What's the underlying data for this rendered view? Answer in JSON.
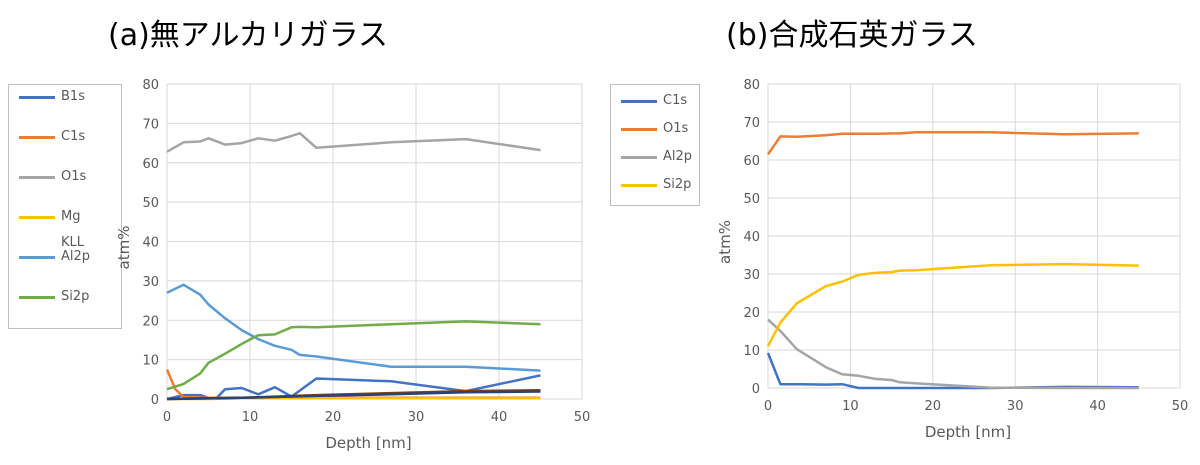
{
  "chart_data": [
    {
      "type": "line",
      "title": "(a)無アルカリガラス",
      "xlabel": "Depth [nm]",
      "ylabel": "atm%",
      "xlim": [
        0,
        50
      ],
      "ylim": [
        0,
        80
      ],
      "xticks": [
        0,
        10,
        20,
        30,
        40,
        50
      ],
      "yticks": [
        0,
        10,
        20,
        30,
        40,
        50,
        60,
        70,
        80
      ],
      "grid": true,
      "legend_position": "left",
      "legend": [
        "B1s",
        "C1s",
        "O1s",
        "Mg",
        "KLL",
        "Al2p",
        "Si2p"
      ],
      "series": [
        {
          "name": "B1s",
          "color": "#4472c4",
          "x": [
            0,
            2,
            4,
            5,
            6,
            7,
            9,
            11,
            13,
            15,
            18,
            27,
            36,
            45
          ],
          "y": [
            0,
            1,
            1,
            0.3,
            0.3,
            2.5,
            2.8,
            1.2,
            3,
            0.6,
            5.2,
            4.5,
            2,
            6
          ]
        },
        {
          "name": "C1s",
          "color": "#ed7d31",
          "x": [
            0,
            1,
            2,
            4,
            5,
            6,
            7,
            9,
            11,
            13,
            15,
            18,
            27,
            36,
            45
          ],
          "y": [
            7.5,
            2.5,
            0.5,
            0.3,
            0.3,
            0.3,
            0.3,
            0.3,
            0.3,
            0.3,
            0.3,
            0.3,
            0.3,
            0.3,
            0.3
          ]
        },
        {
          "name": "O1s",
          "color": "#a5a5a5",
          "x": [
            0,
            2,
            4,
            5,
            7,
            9,
            11,
            13,
            15,
            16,
            18,
            27,
            36,
            45
          ],
          "y": [
            62.8,
            65.2,
            65.4,
            66.2,
            64.6,
            65,
            66.2,
            65.6,
            66.8,
            67.5,
            63.8,
            65.2,
            66,
            63.2
          ]
        },
        {
          "name": "Mg",
          "color": "#ffc000",
          "x": [
            0,
            5,
            9,
            13,
            18,
            27,
            36,
            45
          ],
          "y": [
            0,
            0,
            0.2,
            0.2,
            0.2,
            0.2,
            0.2,
            0.2
          ]
        },
        {
          "name": "Al2p",
          "color": "#5b9bd5",
          "x": [
            0,
            2,
            4,
            5,
            7,
            9,
            11,
            13,
            15,
            16,
            18,
            27,
            36,
            45
          ],
          "y": [
            27,
            29,
            26.5,
            24,
            20.5,
            17.5,
            15.2,
            13.5,
            12.5,
            11.2,
            10.8,
            8.2,
            8.2,
            7.2
          ]
        },
        {
          "name": "Si2p",
          "color": "#70ad47",
          "x": [
            0,
            2,
            4,
            5,
            7,
            9,
            11,
            13,
            15,
            16,
            18,
            27,
            36,
            45
          ],
          "y": [
            2.5,
            3.8,
            6.5,
            9.2,
            11.5,
            14,
            16.2,
            16.4,
            18.2,
            18.3,
            18.2,
            19,
            19.7,
            19
          ]
        },
        {
          "name": "",
          "color": "#843c0c",
          "x": [
            0,
            9,
            18,
            27,
            36,
            45
          ],
          "y": [
            0,
            0.3,
            1,
            1.5,
            2,
            2.2
          ]
        },
        {
          "name": "",
          "color": "#264478",
          "x": [
            0,
            9,
            18,
            27,
            36,
            45
          ],
          "y": [
            0,
            0.3,
            0.8,
            1.2,
            1.7,
            1.9
          ]
        }
      ]
    },
    {
      "type": "line",
      "title": "(b)合成石英ガラス",
      "xlabel": "Depth [nm]",
      "ylabel": "atm%",
      "xlim": [
        0,
        50
      ],
      "ylim": [
        0,
        80
      ],
      "xticks": [
        0,
        10,
        20,
        30,
        40,
        50
      ],
      "yticks": [
        0,
        10,
        20,
        30,
        40,
        50,
        60,
        70,
        80
      ],
      "grid": true,
      "legend_position": "left",
      "legend": [
        "C1s",
        "O1s",
        "Al2p",
        "Si2p"
      ],
      "series": [
        {
          "name": "C1s",
          "color": "#4472c4",
          "x": [
            0,
            1.5,
            4,
            7,
            9,
            11,
            13,
            15,
            18,
            27,
            36,
            45
          ],
          "y": [
            9.2,
            1,
            1,
            0.9,
            1,
            0,
            0,
            0,
            0,
            0,
            0.3,
            0.2
          ]
        },
        {
          "name": "O1s",
          "color": "#ed7d31",
          "x": [
            0,
            1.5,
            3.5,
            5,
            7,
            9,
            11,
            13,
            15,
            16,
            18,
            27,
            36,
            45
          ],
          "y": [
            61.5,
            66.2,
            66.1,
            66.3,
            66.5,
            66.9,
            66.9,
            66.9,
            67,
            67,
            67.3,
            67.3,
            66.8,
            67
          ]
        },
        {
          "name": "Al2p",
          "color": "#a5a5a5",
          "x": [
            0,
            1.5,
            3.5,
            5,
            7,
            9,
            11,
            13,
            15,
            16,
            18,
            27,
            36,
            45
          ],
          "y": [
            18,
            15,
            10.2,
            8.2,
            5.5,
            3.6,
            3.2,
            2.4,
            2.1,
            1.5,
            1.2,
            0.1,
            0,
            0
          ]
        },
        {
          "name": "Si2p",
          "color": "#ffc000",
          "x": [
            0,
            1.5,
            3.5,
            5,
            7,
            9,
            11,
            13,
            15,
            16,
            18,
            27,
            36,
            45
          ],
          "y": [
            11,
            17.2,
            22.3,
            24.2,
            26.8,
            28,
            29.8,
            30.3,
            30.5,
            30.9,
            31,
            32.3,
            32.6,
            32.2
          ]
        }
      ]
    }
  ]
}
